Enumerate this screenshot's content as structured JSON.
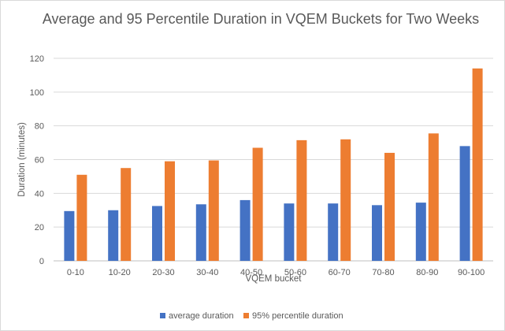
{
  "chart_data": {
    "type": "bar",
    "title": "Average and 95 Percentile Duration in VQEM Buckets for Two Weeks",
    "xlabel": "VQEM bucket",
    "ylabel": "Duration (minutes)",
    "ylim": [
      0,
      120
    ],
    "yticks": [
      0,
      20,
      40,
      60,
      80,
      100,
      120
    ],
    "grid": true,
    "legend_position": "bottom",
    "categories": [
      "0-10",
      "10-20",
      "20-30",
      "30-40",
      "40-50",
      "50-60",
      "60-70",
      "70-80",
      "80-90",
      "90-100"
    ],
    "series": [
      {
        "name": "average duration",
        "color": "#4472c4",
        "values": [
          29.5,
          30,
          32.5,
          33.5,
          36,
          34,
          34,
          33,
          34.5,
          68
        ]
      },
      {
        "name": "95% percentile duration",
        "color": "#ed7d31",
        "values": [
          51,
          55,
          59,
          59.5,
          67,
          71.5,
          72,
          64,
          75.5,
          114
        ]
      }
    ]
  }
}
